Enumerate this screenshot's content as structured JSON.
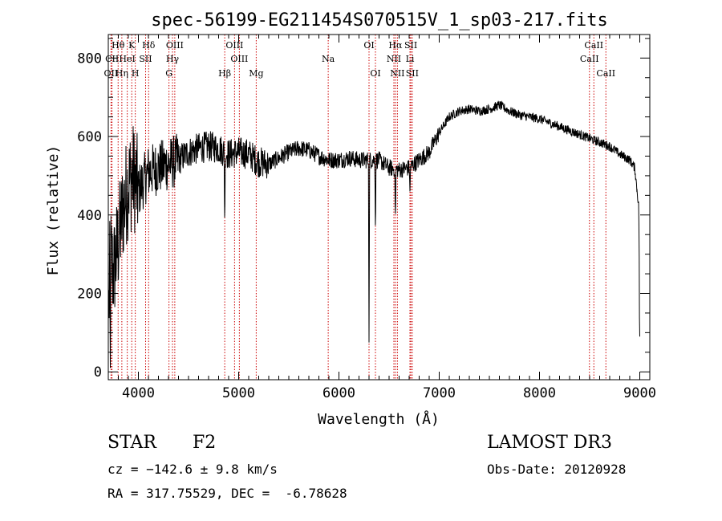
{
  "chart_data": {
    "type": "line",
    "title": "spec-56199-EG211454S070515V_1_sp03-217.fits",
    "xlabel": "Wavelength (Å)",
    "ylabel": "Flux (relative)",
    "xlim": [
      3700,
      9100
    ],
    "ylim": [
      -20,
      860
    ],
    "xticks": [
      4000,
      5000,
      6000,
      7000,
      8000,
      9000
    ],
    "yticks": [
      0,
      200,
      400,
      600,
      800
    ],
    "grid": false,
    "line_color": "#000000",
    "marker_color": "#cc0000",
    "spectrum_anchors": [
      [
        3700,
        120
      ],
      [
        3720,
        300
      ],
      [
        3750,
        250
      ],
      [
        3800,
        330
      ],
      [
        3850,
        420
      ],
      [
        3900,
        480
      ],
      [
        3950,
        500
      ],
      [
        4000,
        460
      ],
      [
        4100,
        510
      ],
      [
        4200,
        520
      ],
      [
        4300,
        530
      ],
      [
        4400,
        540
      ],
      [
        4500,
        560
      ],
      [
        4600,
        570
      ],
      [
        4700,
        575
      ],
      [
        4800,
        570
      ],
      [
        4900,
        555
      ],
      [
        5000,
        560
      ],
      [
        5100,
        555
      ],
      [
        5200,
        535
      ],
      [
        5300,
        530
      ],
      [
        5400,
        545
      ],
      [
        5500,
        560
      ],
      [
        5600,
        570
      ],
      [
        5700,
        565
      ],
      [
        5800,
        550
      ],
      [
        5900,
        540
      ],
      [
        6000,
        540
      ],
      [
        6100,
        545
      ],
      [
        6200,
        540
      ],
      [
        6300,
        540
      ],
      [
        6400,
        540
      ],
      [
        6500,
        520
      ],
      [
        6600,
        515
      ],
      [
        6700,
        520
      ],
      [
        6800,
        540
      ],
      [
        6900,
        560
      ],
      [
        7000,
        610
      ],
      [
        7100,
        650
      ],
      [
        7200,
        665
      ],
      [
        7300,
        670
      ],
      [
        7400,
        665
      ],
      [
        7500,
        670
      ],
      [
        7600,
        680
      ],
      [
        7700,
        665
      ],
      [
        7800,
        655
      ],
      [
        7900,
        650
      ],
      [
        8000,
        645
      ],
      [
        8100,
        635
      ],
      [
        8200,
        625
      ],
      [
        8300,
        615
      ],
      [
        8400,
        605
      ],
      [
        8500,
        595
      ],
      [
        8600,
        585
      ],
      [
        8700,
        575
      ],
      [
        8800,
        555
      ],
      [
        8900,
        540
      ],
      [
        8950,
        520
      ],
      [
        8990,
        420
      ],
      [
        9000,
        90
      ]
    ],
    "noise": [
      {
        "range": [
          3700,
          4000
        ],
        "amplitude": 140
      },
      {
        "range": [
          4000,
          4400
        ],
        "amplitude": 70
      },
      {
        "range": [
          4400,
          5300
        ],
        "amplitude": 40
      },
      {
        "range": [
          5300,
          7000
        ],
        "amplitude": 22
      },
      {
        "range": [
          7000,
          9000
        ],
        "amplitude": 12
      }
    ],
    "absorption_features": [
      {
        "wavelength": 4861,
        "flux": 360
      },
      {
        "wavelength": 6300,
        "flux": 75
      },
      {
        "wavelength": 6364,
        "flux": 340
      },
      {
        "wavelength": 6563,
        "flux": 380
      },
      {
        "wavelength": 6708,
        "flux": 460
      },
      {
        "wavelength": 3720,
        "flux": 10
      },
      {
        "wavelength": 9000,
        "flux": 90
      }
    ],
    "line_markers": [
      {
        "label": "Hθ",
        "wavelength": 3798,
        "row": 1
      },
      {
        "label": "OII",
        "wavelength": 3727,
        "row": 3
      },
      {
        "label": "Hη",
        "wavelength": 3835,
        "row": 3
      },
      {
        "label": "CII",
        "wavelength": 3737,
        "row": 2
      },
      {
        "label": "HeI",
        "wavelength": 3889,
        "row": 2
      },
      {
        "label": "K",
        "wavelength": 3934,
        "row": 1
      },
      {
        "label": "H",
        "wavelength": 3969,
        "row": 3
      },
      {
        "label": "SII",
        "wavelength": 4072,
        "row": 2
      },
      {
        "label": "Hδ",
        "wavelength": 4102,
        "row": 1
      },
      {
        "label": "OIII",
        "wavelength": 4363,
        "row": 1
      },
      {
        "label": "Hγ",
        "wavelength": 4340,
        "row": 2
      },
      {
        "label": "G",
        "wavelength": 4305,
        "row": 3
      },
      {
        "label": "Hβ",
        "wavelength": 4861,
        "row": 3
      },
      {
        "label": "OIII",
        "wavelength": 4959,
        "row": 1
      },
      {
        "label": "OIII",
        "wavelength": 5007,
        "row": 2
      },
      {
        "label": "Mg",
        "wavelength": 5175,
        "row": 3
      },
      {
        "label": "Na",
        "wavelength": 5893,
        "row": 2
      },
      {
        "label": "OI",
        "wavelength": 6300,
        "row": 1
      },
      {
        "label": "OI",
        "wavelength": 6364,
        "row": 3
      },
      {
        "label": "NII",
        "wavelength": 6548,
        "row": 2
      },
      {
        "label": "Hα",
        "wavelength": 6563,
        "row": 1
      },
      {
        "label": "NII",
        "wavelength": 6583,
        "row": 3
      },
      {
        "label": "SII",
        "wavelength": 6717,
        "row": 1
      },
      {
        "label": "Li",
        "wavelength": 6708,
        "row": 2
      },
      {
        "label": "SII",
        "wavelength": 6731,
        "row": 3
      },
      {
        "label": "CaII",
        "wavelength": 8498,
        "row": 2
      },
      {
        "label": "CaII",
        "wavelength": 8542,
        "row": 1
      },
      {
        "label": "CaII",
        "wavelength": 8662,
        "row": 3
      }
    ]
  },
  "info": {
    "class": "STAR",
    "subclass": "F2",
    "survey": "LAMOST DR3",
    "cz": "cz = −142.6 ± 9.8 km/s",
    "obs_date": "Obs-Date: 20120928",
    "coords": "RA = 317.75529, DEC =  -6.78628"
  }
}
